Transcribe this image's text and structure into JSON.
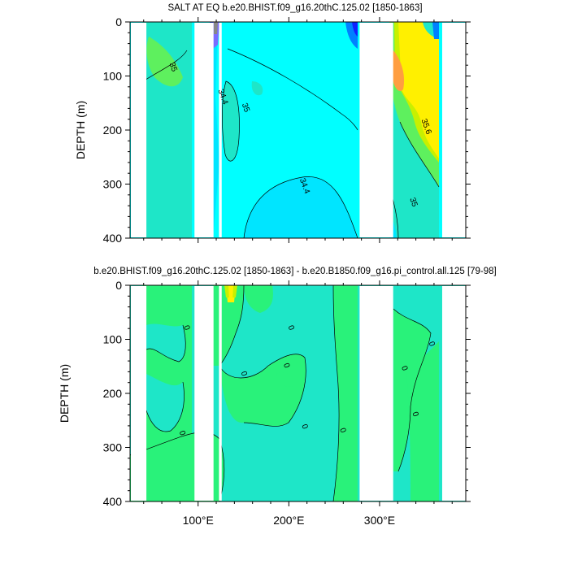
{
  "chart_data": [
    {
      "type": "heatmap",
      "title": "SALT AT EQ b.e20.BHIST.f09_g16.20thC.125.02 [1850-1863]",
      "ylabel": "DEPTH (m)",
      "xlabel": "",
      "xlim": [
        25,
        395
      ],
      "ylim": [
        400,
        0
      ],
      "y_reversed": true,
      "yticks": [
        0,
        100,
        200,
        300,
        400
      ],
      "yticklabels": [
        "0",
        "100",
        "200",
        "300",
        "400"
      ],
      "xticks": [],
      "xticklabels": [],
      "land_bands_lon": [
        [
          96,
          117
        ],
        [
          123,
          126
        ],
        [
          278,
          315
        ],
        [
          369,
          395
        ]
      ],
      "contour_labels": [
        {
          "text": "35",
          "lon": 70,
          "depth": 85
        },
        {
          "text": "34.4",
          "lon": 125,
          "depth": 140
        },
        {
          "text": "35",
          "lon": 150,
          "depth": 160
        },
        {
          "text": "34.4",
          "lon": 215,
          "depth": 305
        },
        {
          "text": "35.6",
          "lon": 349,
          "depth": 195
        },
        {
          "text": "35",
          "lon": 335,
          "depth": 335
        }
      ],
      "colors": {
        "main": "#00ffff",
        "low": "#00e5ff",
        "mid": "#1ee6c8",
        "high": "#5ef05e",
        "higher": "#c8f000",
        "max": "#fff000",
        "peak": "#ff9e40"
      }
    },
    {
      "type": "heatmap",
      "title": "b.e20.BHIST.f09_g16.20thC.125.02 [1850-1863] - b.e20.B1850.f09_g16.pi_control.all.125 [79-98]",
      "ylabel": "DEPTH (m)",
      "xlabel": "",
      "xlim": [
        25,
        395
      ],
      "ylim": [
        400,
        0
      ],
      "y_reversed": true,
      "yticks": [
        0,
        100,
        200,
        300,
        400
      ],
      "yticklabels": [
        "0",
        "100",
        "200",
        "300",
        "400"
      ],
      "xticks": [
        100,
        200,
        300
      ],
      "xticklabels": [
        "100°E",
        "200°E",
        "300°E"
      ],
      "land_bands_lon": [
        [
          96,
          117
        ],
        [
          123,
          126
        ],
        [
          278,
          315
        ],
        [
          369,
          395
        ]
      ],
      "contour_labels": [
        {
          "text": "0",
          "lon": 85,
          "depth": 80
        },
        {
          "text": "0",
          "lon": 148,
          "depth": 165
        },
        {
          "text": "0",
          "lon": 195,
          "depth": 150
        },
        {
          "text": "0",
          "lon": 200,
          "depth": 80
        },
        {
          "text": "0",
          "lon": 215,
          "depth": 263
        },
        {
          "text": "0",
          "lon": 257,
          "depth": 270
        },
        {
          "text": "0",
          "lon": 80,
          "depth": 275
        },
        {
          "text": "0",
          "lon": 325,
          "depth": 155
        },
        {
          "text": "0",
          "lon": 337,
          "depth": 240
        },
        {
          "text": "0",
          "lon": 355,
          "depth": 110
        }
      ],
      "colors": {
        "main": "#1ee6c8",
        "high": "#29f27a",
        "higher": "#c8f000",
        "max": "#fff000"
      }
    }
  ]
}
